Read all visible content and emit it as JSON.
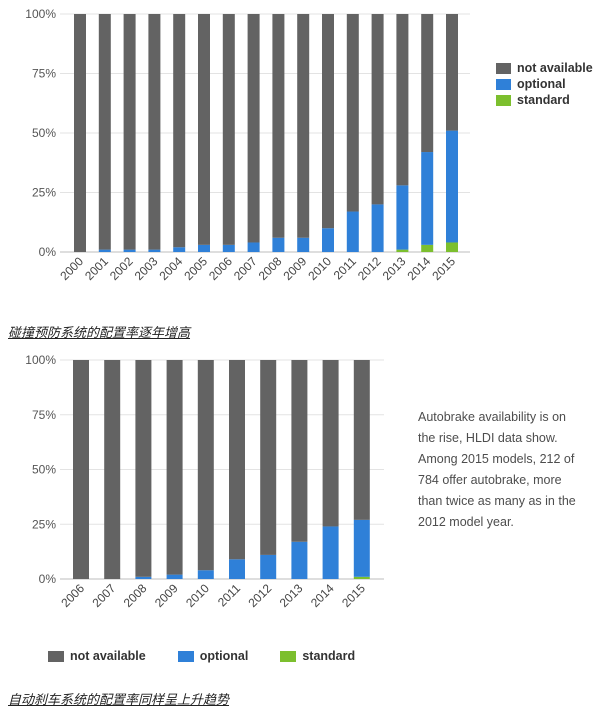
{
  "colors": {
    "not_available": "#636363",
    "optional": "#2f80d8",
    "standard": "#7cbf2e"
  },
  "captions": {
    "chart1": "碰撞预防系统的配置率逐年增高",
    "chart2": "自动刹车系统的配置率同样呈上升趋势"
  },
  "note": "Autobrake availability is on the rise, HLDI data show. Among 2015 models, 212 of 784 offer autobrake, more than twice as many as in the 2012 model year.",
  "legend": {
    "not_available": "not available",
    "optional": "optional",
    "standard": "standard"
  },
  "chart_data": [
    {
      "type": "bar",
      "stacked": true,
      "title": "",
      "xlabel": "",
      "ylabel": "",
      "ylim": [
        0,
        100
      ],
      "y_ticks": [
        "0%",
        "25%",
        "50%",
        "75%",
        "100%"
      ],
      "legend_position": "right",
      "categories": [
        "2000",
        "2001",
        "2002",
        "2003",
        "2004",
        "2005",
        "2006",
        "2007",
        "2008",
        "2009",
        "2010",
        "2011",
        "2012",
        "2013",
        "2014",
        "2015"
      ],
      "series": [
        {
          "name": "standard",
          "values": [
            0,
            0,
            0,
            0,
            0,
            0,
            0,
            0,
            0,
            0,
            0,
            0,
            0,
            1,
            3,
            4
          ]
        },
        {
          "name": "optional",
          "values": [
            0,
            1,
            1,
            1,
            2,
            3,
            3,
            4,
            6,
            6,
            10,
            17,
            20,
            27,
            39,
            47
          ]
        },
        {
          "name": "not available",
          "values": [
            100,
            99,
            99,
            99,
            98,
            97,
            97,
            96,
            94,
            94,
            90,
            83,
            80,
            72,
            58,
            49
          ]
        }
      ]
    },
    {
      "type": "bar",
      "stacked": true,
      "title": "",
      "xlabel": "",
      "ylabel": "",
      "ylim": [
        0,
        100
      ],
      "y_ticks": [
        "0%",
        "25%",
        "50%",
        "75%",
        "100%"
      ],
      "legend_position": "bottom",
      "categories": [
        "2006",
        "2007",
        "2008",
        "2009",
        "2010",
        "2011",
        "2012",
        "2013",
        "2014",
        "2015"
      ],
      "series": [
        {
          "name": "standard",
          "values": [
            0,
            0,
            0,
            0,
            0,
            0,
            0,
            0,
            0,
            1
          ]
        },
        {
          "name": "optional",
          "values": [
            0,
            0,
            1,
            2,
            4,
            9,
            11,
            17,
            24,
            26
          ]
        },
        {
          "name": "not available",
          "values": [
            100,
            100,
            99,
            98,
            96,
            91,
            89,
            83,
            76,
            73
          ]
        }
      ]
    }
  ]
}
